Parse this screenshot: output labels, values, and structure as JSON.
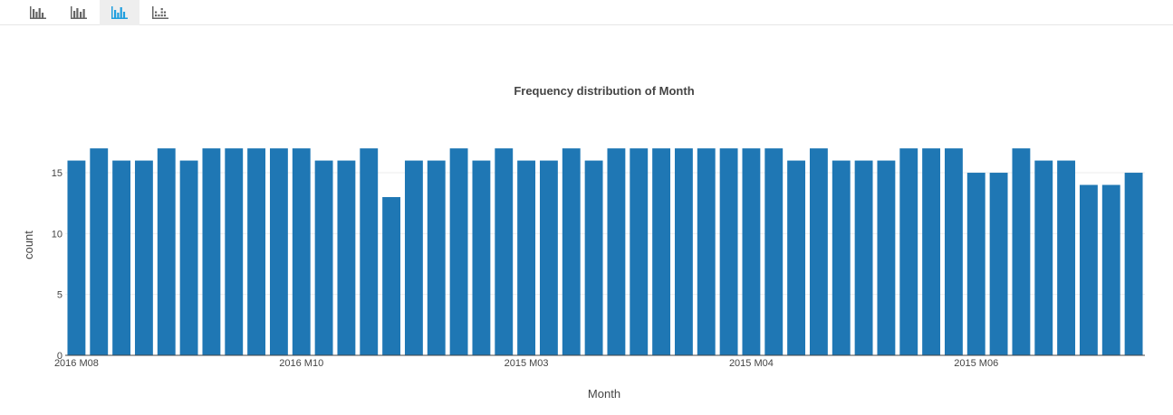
{
  "toolbar": {
    "buttons": [
      {
        "icon": "histogram-icon",
        "active": false
      },
      {
        "icon": "bar-chart-icon",
        "active": false
      },
      {
        "icon": "column-chart-icon",
        "active": true
      },
      {
        "icon": "dot-histogram-icon",
        "active": false
      }
    ],
    "active_color": "#1f9ede",
    "inactive_color": "#666666"
  },
  "chart_data": {
    "type": "bar",
    "title": "Frequency distribution of Month",
    "xlabel": "Month",
    "ylabel": "count",
    "ylim": [
      0,
      17.9
    ],
    "yticks": [
      0,
      5,
      10,
      15
    ],
    "grid": true,
    "bar_color": "#1f77b4",
    "xtick_labels": [
      {
        "index": 0,
        "label": "2016 M08"
      },
      {
        "index": 10,
        "label": "2016 M10"
      },
      {
        "index": 20,
        "label": "2015 M03"
      },
      {
        "index": 30,
        "label": "2015 M04"
      },
      {
        "index": 40,
        "label": "2015 M06"
      }
    ],
    "values": [
      16,
      17,
      16,
      16,
      17,
      16,
      17,
      17,
      17,
      17,
      17,
      16,
      16,
      17,
      13,
      16,
      16,
      17,
      16,
      17,
      16,
      16,
      17,
      16,
      17,
      17,
      17,
      17,
      17,
      17,
      17,
      17,
      16,
      17,
      16,
      16,
      16,
      17,
      17,
      17,
      15,
      15,
      17,
      16,
      16,
      14,
      14,
      15
    ]
  }
}
